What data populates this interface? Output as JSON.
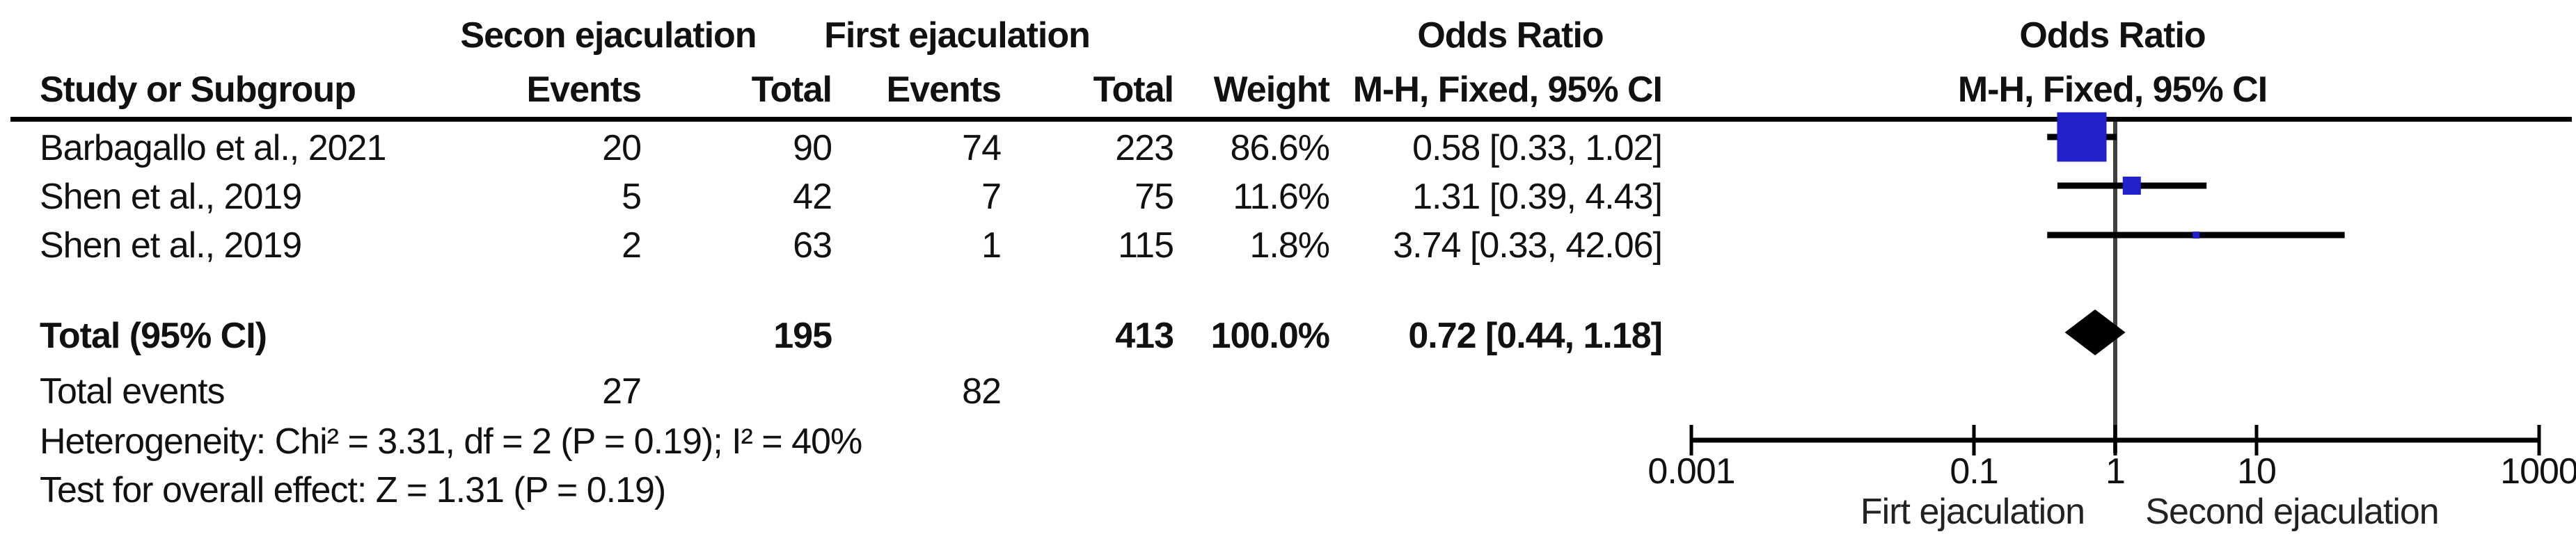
{
  "table": {
    "headers": {
      "group1": "Secon ejaculation",
      "group2": "First ejaculation",
      "or_col": "Odds Ratio",
      "or_plot": "Odds Ratio",
      "study": "Study or Subgroup",
      "events": "Events",
      "total": "Total",
      "weight": "Weight",
      "mh_ci": "M-H, Fixed, 95% CI"
    },
    "rows": [
      {
        "study": "Barbagallo et al., 2021",
        "e1": "20",
        "t1": "90",
        "e2": "74",
        "t2": "223",
        "weight": "86.6%",
        "ci": "0.58 [0.33, 1.02]"
      },
      {
        "study": "Shen et al., 2019",
        "e1": "5",
        "t1": "42",
        "e2": "7",
        "t2": "75",
        "weight": "11.6%",
        "ci": "1.31 [0.39, 4.43]"
      },
      {
        "study": "Shen et al., 2019",
        "e1": "2",
        "t1": "63",
        "e2": "1",
        "t2": "115",
        "weight": "1.8%",
        "ci": "3.74 [0.33, 42.06]"
      }
    ],
    "total_row": {
      "label": "Total (95% CI)",
      "t1": "195",
      "t2": "413",
      "weight": "100.0%",
      "ci": "0.72 [0.44, 1.18]"
    },
    "total_events": {
      "label": "Total events",
      "e1": "27",
      "e2": "82"
    },
    "heterogeneity": "Heterogeneity: Chi² = 3.31, df = 2 (P = 0.19); I² = 40%",
    "overall_effect": "Test for overall effect: Z = 1.31 (P = 0.19)"
  },
  "chart_data": {
    "type": "forest",
    "effect_measure": "Odds Ratio, M-H, Fixed, 95% CI",
    "studies": [
      {
        "name": "Barbagallo et al., 2021",
        "or": 0.58,
        "ci_low": 0.33,
        "ci_high": 1.02,
        "weight_pct": 86.6
      },
      {
        "name": "Shen et al., 2019",
        "or": 1.31,
        "ci_low": 0.39,
        "ci_high": 4.43,
        "weight_pct": 11.6
      },
      {
        "name": "Shen et al., 2019",
        "or": 3.74,
        "ci_low": 0.33,
        "ci_high": 42.06,
        "weight_pct": 1.8
      }
    ],
    "total": {
      "or": 0.72,
      "ci_low": 0.44,
      "ci_high": 1.18,
      "weight_pct": 100.0
    },
    "axis": {
      "scale": "log",
      "min": 0.001,
      "max": 1000,
      "ticks": [
        0.001,
        0.1,
        1,
        10,
        1000
      ],
      "null_line": 1
    },
    "left_label": "Firt ejaculation",
    "right_label": "Second ejaculation",
    "colors": {
      "square": "#2121CC",
      "diamond": "#000000",
      "ci_line": "#000000",
      "null_line": "#404040",
      "axis": "#000000"
    }
  }
}
